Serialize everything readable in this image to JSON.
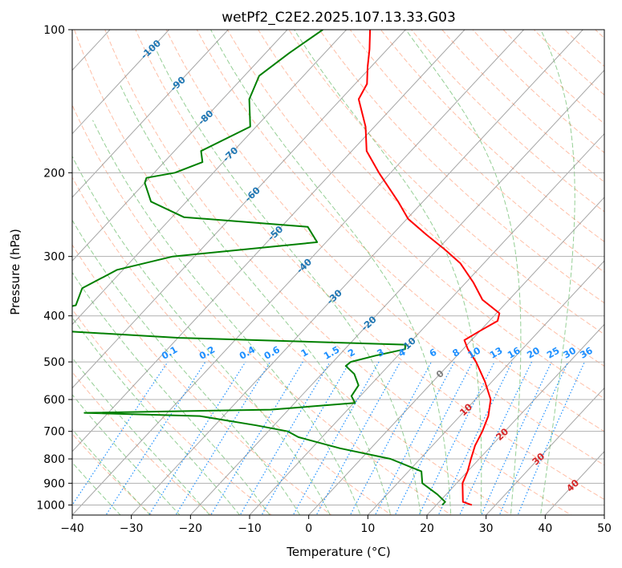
{
  "chart_data": {
    "type": "line",
    "subtype": "skew-t log-p diagram",
    "title": "wetPf2_C2E2.2025.107.13.33.G03",
    "xlabel": "Temperature (°C)",
    "ylabel": "Pressure (hPa)",
    "xlim": [
      -40,
      50
    ],
    "ylim_pressure": [
      1050,
      100
    ],
    "y_scale": "log",
    "grid": true,
    "x_ticks": [
      "−40",
      "−30",
      "−20",
      "−10",
      "0",
      "10",
      "20",
      "30",
      "40",
      "50"
    ],
    "y_ticks": [
      "100",
      "200",
      "300",
      "400",
      "500",
      "600",
      "700",
      "800",
      "900",
      "1000"
    ],
    "colors": {
      "temperature": "#ff0000",
      "dewpoint": "#008000",
      "isotherm_label_cold": "#1f77b4",
      "isotherm_label_warm": "#d62728",
      "isotherm_label_zero": "#808080",
      "mixing_ratio": "#1e90ff",
      "dry_adiabat": "#ff7f50",
      "moist_adiabat": "#2ca02c",
      "skewed_isotherm": "#808080"
    },
    "isotherm_labels": [
      {
        "text": "-100",
        "t": -100,
        "p": 110
      },
      {
        "text": "-90",
        "t": -90,
        "p": 130
      },
      {
        "text": "-80",
        "t": -80,
        "p": 153
      },
      {
        "text": "-70",
        "t": -70,
        "p": 183
      },
      {
        "text": "-60",
        "t": -60,
        "p": 222
      },
      {
        "text": "-50",
        "t": -50,
        "p": 268
      },
      {
        "text": "-40",
        "t": -40,
        "p": 314
      },
      {
        "text": "-30",
        "t": -30,
        "p": 365
      },
      {
        "text": "-20",
        "t": -20,
        "p": 415
      },
      {
        "text": "-10",
        "t": -10,
        "p": 460
      },
      {
        "text": "0",
        "t": 0,
        "p": 530
      },
      {
        "text": "10",
        "t": 10,
        "p": 630
      },
      {
        "text": "20",
        "t": 20,
        "p": 710
      },
      {
        "text": "30",
        "t": 30,
        "p": 800
      },
      {
        "text": "40",
        "t": 40,
        "p": 910
      }
    ],
    "mixing_ratio_labels": [
      "0.1",
      "0.2",
      "0.4",
      "0.6",
      "1",
      "1.5",
      "2",
      "3",
      "4",
      "6",
      "8",
      "10",
      "13",
      "16",
      "20",
      "25",
      "30",
      "36"
    ],
    "mixing_ratio_values": [
      0.1,
      0.2,
      0.4,
      0.6,
      1,
      1.5,
      2,
      3,
      4,
      6,
      8,
      10,
      13,
      16,
      20,
      25,
      30,
      36
    ],
    "series": [
      {
        "key": "temperature",
        "points": [
          [
            1000,
            26.0
          ],
          [
            985,
            24.0
          ],
          [
            950,
            22.8
          ],
          [
            900,
            21.0
          ],
          [
            850,
            20.0
          ],
          [
            800,
            18.6
          ],
          [
            750,
            17.2
          ],
          [
            700,
            16.2
          ],
          [
            650,
            14.8
          ],
          [
            600,
            12.6
          ],
          [
            550,
            8.8
          ],
          [
            500,
            4.2
          ],
          [
            470,
            0.8
          ],
          [
            450,
            -1.2
          ],
          [
            430,
            0.0
          ],
          [
            410,
            1.4
          ],
          [
            395,
            0.5
          ],
          [
            370,
            -4.5
          ],
          [
            340,
            -8.8
          ],
          [
            310,
            -14.0
          ],
          [
            290,
            -18.8
          ],
          [
            270,
            -24.2
          ],
          [
            250,
            -29.8
          ],
          [
            230,
            -34.2
          ],
          [
            200,
            -42.0
          ],
          [
            180,
            -47.5
          ],
          [
            160,
            -51.5
          ],
          [
            140,
            -57.0
          ],
          [
            130,
            -58.0
          ],
          [
            120,
            -60.5
          ],
          [
            110,
            -63.0
          ],
          [
            100,
            -66.0
          ]
        ]
      },
      {
        "key": "dewpoint",
        "points": [
          [
            1000,
            21.0
          ],
          [
            985,
            21.0
          ],
          [
            950,
            18.5
          ],
          [
            900,
            14.2
          ],
          [
            850,
            12.2
          ],
          [
            800,
            5.0
          ],
          [
            760,
            -5.2
          ],
          [
            720,
            -14.0
          ],
          [
            700,
            -16.7
          ],
          [
            680,
            -23.0
          ],
          [
            650,
            -34.0
          ],
          [
            640,
            -54.0
          ],
          [
            630,
            -23.0
          ],
          [
            610,
            -9.8
          ],
          [
            590,
            -11.5
          ],
          [
            560,
            -12.0
          ],
          [
            530,
            -14.5
          ],
          [
            510,
            -17.2
          ],
          [
            500,
            -17.0
          ],
          [
            485,
            -13.8
          ],
          [
            470,
            -9.8
          ],
          [
            460,
            -10.5
          ],
          [
            445,
            -49.8
          ],
          [
            430,
            -71.5
          ],
          [
            405,
            -80.0
          ],
          [
            380,
            -72.4
          ],
          [
            350,
            -74.0
          ],
          [
            320,
            -71.0
          ],
          [
            300,
            -63.7
          ],
          [
            280,
            -41.5
          ],
          [
            260,
            -45.5
          ],
          [
            248,
            -68.0
          ],
          [
            230,
            -76.0
          ],
          [
            210,
            -80.0
          ],
          [
            205,
            -80.5
          ],
          [
            200,
            -76.5
          ],
          [
            190,
            -73.5
          ],
          [
            180,
            -75.5
          ],
          [
            160,
            -71.0
          ],
          [
            140,
            -75.5
          ],
          [
            125,
            -77.5
          ],
          [
            112,
            -76.0
          ],
          [
            100,
            -74.0
          ]
        ]
      }
    ]
  }
}
